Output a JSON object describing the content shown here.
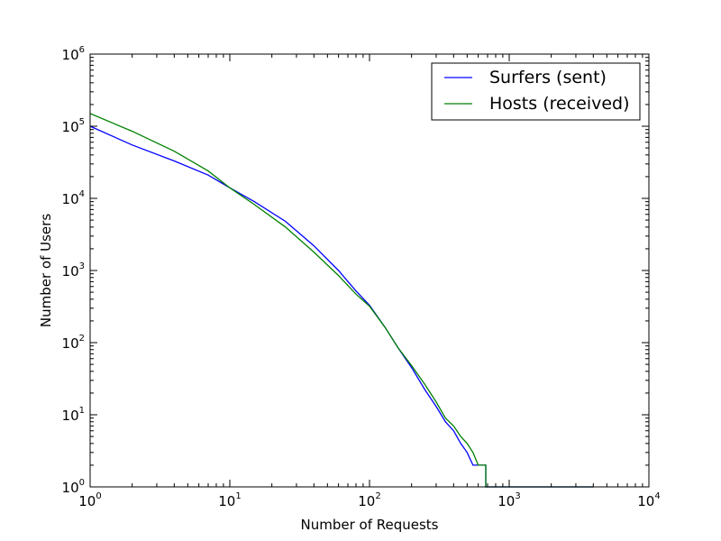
{
  "chart_data": {
    "type": "line",
    "xlabel": "Number of Requests",
    "ylabel": "Number of Users",
    "xscale": "log",
    "yscale": "log",
    "xlim": [
      1,
      10000
    ],
    "ylim": [
      1,
      1000000
    ],
    "x_ticks": [
      {
        "base": "10",
        "exp": "0",
        "value": 1
      },
      {
        "base": "10",
        "exp": "1",
        "value": 10
      },
      {
        "base": "10",
        "exp": "2",
        "value": 100
      },
      {
        "base": "10",
        "exp": "3",
        "value": 1000
      },
      {
        "base": "10",
        "exp": "4",
        "value": 10000
      }
    ],
    "y_ticks": [
      {
        "base": "10",
        "exp": "0",
        "value": 1
      },
      {
        "base": "10",
        "exp": "1",
        "value": 10
      },
      {
        "base": "10",
        "exp": "2",
        "value": 100
      },
      {
        "base": "10",
        "exp": "3",
        "value": 1000
      },
      {
        "base": "10",
        "exp": "4",
        "value": 10000
      },
      {
        "base": "10",
        "exp": "5",
        "value": 100000
      },
      {
        "base": "10",
        "exp": "6",
        "value": 1000000
      }
    ],
    "grid": false,
    "legend_position": "top-right",
    "series": [
      {
        "name": "Surfers (sent)",
        "color": "#0000ff",
        "points": [
          [
            1,
            100000
          ],
          [
            2,
            55000
          ],
          [
            4,
            33000
          ],
          [
            7,
            21000
          ],
          [
            10,
            14000
          ],
          [
            15,
            9000
          ],
          [
            25,
            4800
          ],
          [
            40,
            2200
          ],
          [
            60,
            1000
          ],
          [
            80,
            520
          ],
          [
            100,
            330
          ],
          [
            130,
            160
          ],
          [
            160,
            85
          ],
          [
            200,
            45
          ],
          [
            250,
            22
          ],
          [
            300,
            13
          ],
          [
            350,
            8
          ],
          [
            400,
            6
          ],
          [
            450,
            4
          ],
          [
            500,
            3
          ],
          [
            550,
            2
          ],
          [
            680,
            2
          ],
          [
            680,
            1
          ],
          [
            4000,
            1
          ]
        ]
      },
      {
        "name": "Hosts (received)",
        "color": "#008000",
        "points": [
          [
            1,
            150000
          ],
          [
            2,
            85000
          ],
          [
            4,
            45000
          ],
          [
            7,
            24000
          ],
          [
            10,
            14000
          ],
          [
            15,
            8200
          ],
          [
            25,
            4000
          ],
          [
            40,
            1800
          ],
          [
            60,
            850
          ],
          [
            80,
            470
          ],
          [
            100,
            320
          ],
          [
            130,
            160
          ],
          [
            160,
            85
          ],
          [
            200,
            48
          ],
          [
            250,
            26
          ],
          [
            300,
            15
          ],
          [
            350,
            9
          ],
          [
            400,
            7
          ],
          [
            450,
            5
          ],
          [
            500,
            4
          ],
          [
            550,
            3
          ],
          [
            600,
            2
          ],
          [
            680,
            2
          ],
          [
            680,
            1
          ],
          [
            4000,
            1
          ]
        ]
      }
    ]
  }
}
